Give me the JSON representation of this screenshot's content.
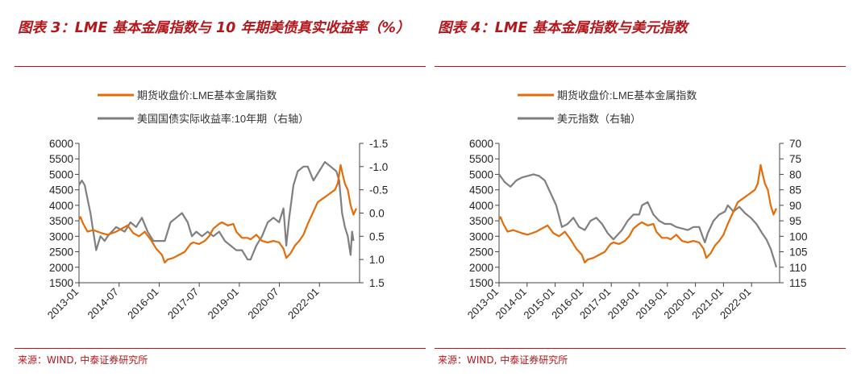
{
  "panels": [
    {
      "title": "图表 3：LME 基本金属指数与 10 年期美债真实收益率（%）",
      "source": "来源：WIND, 中泰证券研究所"
    },
    {
      "title": "图表 4：LME 基本金属指数与美元指数",
      "source": "来源：WIND, 中泰证券研究所"
    }
  ],
  "colors": {
    "title": "#b4161b",
    "series_main": "#e36c09",
    "series_secondary": "#7f7f7f"
  },
  "chart_data": [
    {
      "type": "line",
      "legend": [
        "期货收盘价:LME基本金属指数",
        "美国国债实际收益率:10年期（右轴）"
      ],
      "categories": [
        "2013-01",
        "2014-07",
        "2016-01",
        "2017-07",
        "2019-01",
        "2020-07",
        "2022-01"
      ],
      "x_range": [
        2013.0,
        2022.7
      ],
      "y_left": {
        "min": 1500,
        "max": 6000,
        "ticks": [
          6000,
          5500,
          5000,
          4500,
          4000,
          3500,
          3000,
          2500,
          2000,
          1500
        ]
      },
      "y_right": {
        "min": -1.5,
        "max": 1.5,
        "inverted": true,
        "ticks": [
          "-1.5",
          "-1.0",
          "-0.5",
          "0.0",
          "0.5",
          "1.0",
          "1.5"
        ]
      },
      "series": [
        {
          "name": "期货收盘价:LME基本金属指数",
          "axis": "left",
          "points": [
            [
              2013.0,
              3550
            ],
            [
              2013.05,
              3620
            ],
            [
              2013.15,
              3400
            ],
            [
              2013.3,
              3150
            ],
            [
              2013.5,
              3200
            ],
            [
              2013.8,
              3100
            ],
            [
              2014.0,
              3050
            ],
            [
              2014.3,
              3150
            ],
            [
              2014.5,
              3250
            ],
            [
              2014.7,
              3350
            ],
            [
              2014.9,
              3100
            ],
            [
              2015.1,
              3000
            ],
            [
              2015.3,
              3150
            ],
            [
              2015.5,
              2900
            ],
            [
              2015.7,
              2600
            ],
            [
              2015.9,
              2400
            ],
            [
              2016.0,
              2150
            ],
            [
              2016.1,
              2250
            ],
            [
              2016.3,
              2300
            ],
            [
              2016.5,
              2400
            ],
            [
              2016.7,
              2500
            ],
            [
              2016.9,
              2750
            ],
            [
              2017.0,
              2800
            ],
            [
              2017.2,
              2750
            ],
            [
              2017.4,
              2850
            ],
            [
              2017.55,
              3000
            ],
            [
              2017.7,
              3250
            ],
            [
              2017.9,
              3400
            ],
            [
              2018.0,
              3450
            ],
            [
              2018.2,
              3350
            ],
            [
              2018.4,
              3400
            ],
            [
              2018.5,
              3150
            ],
            [
              2018.7,
              2950
            ],
            [
              2018.9,
              2950
            ],
            [
              2019.0,
              2900
            ],
            [
              2019.2,
              3050
            ],
            [
              2019.4,
              2850
            ],
            [
              2019.6,
              2800
            ],
            [
              2019.8,
              2850
            ],
            [
              2020.0,
              2800
            ],
            [
              2020.15,
              2600
            ],
            [
              2020.25,
              2300
            ],
            [
              2020.4,
              2450
            ],
            [
              2020.55,
              2700
            ],
            [
              2020.7,
              2850
            ],
            [
              2020.85,
              3050
            ],
            [
              2021.0,
              3400
            ],
            [
              2021.2,
              3800
            ],
            [
              2021.35,
              4100
            ],
            [
              2021.5,
              4200
            ],
            [
              2021.65,
              4300
            ],
            [
              2021.8,
              4400
            ],
            [
              2021.95,
              4500
            ],
            [
              2022.05,
              4700
            ],
            [
              2022.15,
              5300
            ],
            [
              2022.22,
              5000
            ],
            [
              2022.3,
              4700
            ],
            [
              2022.4,
              4500
            ],
            [
              2022.5,
              4000
            ],
            [
              2022.6,
              3700
            ],
            [
              2022.7,
              3900
            ]
          ]
        },
        {
          "name": "美国国债实际收益率:10年期（右轴）",
          "axis": "right",
          "points": [
            [
              2013.0,
              -0.6
            ],
            [
              2013.1,
              -0.7
            ],
            [
              2013.2,
              -0.6
            ],
            [
              2013.3,
              -0.3
            ],
            [
              2013.4,
              0.0
            ],
            [
              2013.5,
              0.4
            ],
            [
              2013.6,
              0.8
            ],
            [
              2013.75,
              0.5
            ],
            [
              2013.9,
              0.6
            ],
            [
              2014.0,
              0.5
            ],
            [
              2014.3,
              0.3
            ],
            [
              2014.6,
              0.4
            ],
            [
              2014.8,
              0.2
            ],
            [
              2015.0,
              0.3
            ],
            [
              2015.2,
              0.1
            ],
            [
              2015.4,
              0.4
            ],
            [
              2015.6,
              0.6
            ],
            [
              2015.8,
              0.6
            ],
            [
              2016.0,
              0.6
            ],
            [
              2016.2,
              0.2
            ],
            [
              2016.4,
              0.1
            ],
            [
              2016.6,
              0.0
            ],
            [
              2016.8,
              0.2
            ],
            [
              2016.95,
              0.5
            ],
            [
              2017.1,
              0.4
            ],
            [
              2017.3,
              0.5
            ],
            [
              2017.5,
              0.4
            ],
            [
              2017.7,
              0.5
            ],
            [
              2017.9,
              0.4
            ],
            [
              2018.1,
              0.6
            ],
            [
              2018.3,
              0.7
            ],
            [
              2018.5,
              0.8
            ],
            [
              2018.7,
              0.8
            ],
            [
              2018.9,
              1.0
            ],
            [
              2019.0,
              1.0
            ],
            [
              2019.2,
              0.7
            ],
            [
              2019.4,
              0.5
            ],
            [
              2019.6,
              0.2
            ],
            [
              2019.8,
              0.1
            ],
            [
              2020.0,
              0.2
            ],
            [
              2020.15,
              -0.1
            ],
            [
              2020.25,
              0.7
            ],
            [
              2020.35,
              0.1
            ],
            [
              2020.5,
              -0.6
            ],
            [
              2020.65,
              -0.9
            ],
            [
              2020.85,
              -1.0
            ],
            [
              2021.0,
              -1.0
            ],
            [
              2021.2,
              -0.7
            ],
            [
              2021.4,
              -0.9
            ],
            [
              2021.6,
              -1.1
            ],
            [
              2021.8,
              -1.0
            ],
            [
              2022.0,
              -0.9
            ],
            [
              2022.1,
              -0.7
            ],
            [
              2022.2,
              0.0
            ],
            [
              2022.3,
              0.3
            ],
            [
              2022.4,
              0.5
            ],
            [
              2022.45,
              0.7
            ],
            [
              2022.5,
              0.9
            ],
            [
              2022.55,
              0.4
            ],
            [
              2022.6,
              0.6
            ]
          ]
        }
      ]
    },
    {
      "type": "line",
      "legend": [
        "期货收盘价:LME基本金属指数",
        "美元指数（右轴）"
      ],
      "categories": [
        "2013-01",
        "2014-01",
        "2015-01",
        "2016-01",
        "2017-01",
        "2018-01",
        "2019-01",
        "2020-01",
        "2021-01",
        "2022-01"
      ],
      "x_range": [
        2013.0,
        2022.7
      ],
      "y_left": {
        "min": 1500,
        "max": 6000,
        "ticks": [
          6000,
          5500,
          5000,
          4500,
          4000,
          3500,
          3000,
          2500,
          2000,
          1500
        ]
      },
      "y_right": {
        "min": 70,
        "max": 115,
        "inverted": true,
        "ticks": [
          70,
          75,
          80,
          85,
          90,
          95,
          100,
          105,
          110,
          115
        ]
      },
      "series": [
        {
          "name": "期货收盘价:LME基本金属指数",
          "axis": "left",
          "points": [
            [
              2013.0,
              3550
            ],
            [
              2013.05,
              3620
            ],
            [
              2013.15,
              3400
            ],
            [
              2013.3,
              3150
            ],
            [
              2013.5,
              3200
            ],
            [
              2013.8,
              3100
            ],
            [
              2014.0,
              3050
            ],
            [
              2014.3,
              3150
            ],
            [
              2014.5,
              3250
            ],
            [
              2014.7,
              3350
            ],
            [
              2014.9,
              3100
            ],
            [
              2015.1,
              3000
            ],
            [
              2015.3,
              3150
            ],
            [
              2015.5,
              2900
            ],
            [
              2015.7,
              2600
            ],
            [
              2015.9,
              2400
            ],
            [
              2016.0,
              2150
            ],
            [
              2016.1,
              2250
            ],
            [
              2016.3,
              2300
            ],
            [
              2016.5,
              2400
            ],
            [
              2016.7,
              2500
            ],
            [
              2016.9,
              2750
            ],
            [
              2017.0,
              2800
            ],
            [
              2017.2,
              2750
            ],
            [
              2017.4,
              2850
            ],
            [
              2017.55,
              3000
            ],
            [
              2017.7,
              3250
            ],
            [
              2017.9,
              3400
            ],
            [
              2018.0,
              3450
            ],
            [
              2018.2,
              3350
            ],
            [
              2018.4,
              3400
            ],
            [
              2018.5,
              3150
            ],
            [
              2018.7,
              2950
            ],
            [
              2018.9,
              2950
            ],
            [
              2019.0,
              2900
            ],
            [
              2019.2,
              3050
            ],
            [
              2019.4,
              2850
            ],
            [
              2019.6,
              2800
            ],
            [
              2019.8,
              2850
            ],
            [
              2020.0,
              2800
            ],
            [
              2020.15,
              2600
            ],
            [
              2020.25,
              2300
            ],
            [
              2020.4,
              2450
            ],
            [
              2020.55,
              2700
            ],
            [
              2020.7,
              2850
            ],
            [
              2020.85,
              3050
            ],
            [
              2021.0,
              3400
            ],
            [
              2021.2,
              3800
            ],
            [
              2021.35,
              4100
            ],
            [
              2021.5,
              4200
            ],
            [
              2021.65,
              4300
            ],
            [
              2021.8,
              4400
            ],
            [
              2021.95,
              4500
            ],
            [
              2022.05,
              4700
            ],
            [
              2022.15,
              5300
            ],
            [
              2022.22,
              5000
            ],
            [
              2022.3,
              4700
            ],
            [
              2022.4,
              4500
            ],
            [
              2022.5,
              4000
            ],
            [
              2022.6,
              3700
            ],
            [
              2022.7,
              3900
            ]
          ]
        },
        {
          "name": "美元指数（右轴）",
          "axis": "right",
          "points": [
            [
              2013.0,
              80
            ],
            [
              2013.2,
              82.5
            ],
            [
              2013.4,
              84
            ],
            [
              2013.6,
              82
            ],
            [
              2013.8,
              81
            ],
            [
              2014.0,
              80.5
            ],
            [
              2014.2,
              80
            ],
            [
              2014.4,
              80.5
            ],
            [
              2014.6,
              82
            ],
            [
              2014.8,
              86
            ],
            [
              2015.0,
              90
            ],
            [
              2015.2,
              97
            ],
            [
              2015.4,
              96
            ],
            [
              2015.6,
              94
            ],
            [
              2015.8,
              97
            ],
            [
              2016.0,
              98
            ],
            [
              2016.2,
              95
            ],
            [
              2016.4,
              94
            ],
            [
              2016.6,
              96
            ],
            [
              2016.8,
              99
            ],
            [
              2017.0,
              101
            ],
            [
              2017.1,
              100
            ],
            [
              2017.3,
              98
            ],
            [
              2017.5,
              95
            ],
            [
              2017.7,
              93
            ],
            [
              2017.9,
              93
            ],
            [
              2018.0,
              90
            ],
            [
              2018.2,
              89
            ],
            [
              2018.4,
              93
            ],
            [
              2018.6,
              95
            ],
            [
              2018.8,
              96
            ],
            [
              2019.0,
              96
            ],
            [
              2019.2,
              97
            ],
            [
              2019.4,
              97.5
            ],
            [
              2019.6,
              98
            ],
            [
              2019.8,
              97
            ],
            [
              2020.0,
              97
            ],
            [
              2020.2,
              102
            ],
            [
              2020.3,
              99
            ],
            [
              2020.5,
              95
            ],
            [
              2020.7,
              93
            ],
            [
              2020.9,
              92
            ],
            [
              2021.0,
              90
            ],
            [
              2021.2,
              92
            ],
            [
              2021.4,
              90.5
            ],
            [
              2021.6,
              92.5
            ],
            [
              2021.8,
              94
            ],
            [
              2022.0,
              96
            ],
            [
              2022.2,
              99
            ],
            [
              2022.35,
              101
            ],
            [
              2022.5,
              104
            ],
            [
              2022.6,
              107
            ],
            [
              2022.7,
              110
            ]
          ]
        }
      ]
    }
  ]
}
